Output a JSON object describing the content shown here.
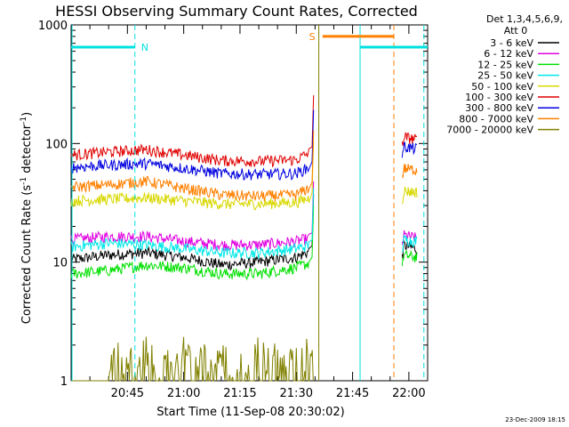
{
  "chart_data": {
    "type": "line",
    "title": "HESSI Observing Summary Count Rates, Corrected",
    "xlabel": "Start Time (11-Sep-08 20:30:02)",
    "ylabel": "Corrected Count Rate (s",
    "ylabel_sup1": "-1",
    "ylabel_mid": " detector",
    "ylabel_sup2": "-1",
    "ylabel_end": ")",
    "yscale": "log",
    "ylim": [
      1,
      1000
    ],
    "xlim_minutes": [
      0,
      95
    ],
    "y_ticks": [
      {
        "value": 1,
        "label": "1"
      },
      {
        "value": 10,
        "label": "10"
      },
      {
        "value": 100,
        "label": "100"
      },
      {
        "value": 1000,
        "label": "1000"
      }
    ],
    "x_ticks": [
      {
        "minute": 15,
        "label": "20:45"
      },
      {
        "minute": 30,
        "label": "21:00"
      },
      {
        "minute": 45,
        "label": "21:15"
      },
      {
        "minute": 60,
        "label": "21:30"
      },
      {
        "minute": 75,
        "label": "21:45"
      },
      {
        "minute": 90,
        "label": "22:00"
      }
    ],
    "legend_header": [
      "Det 1,3,4,5,6,9,",
      "Att 0"
    ],
    "legend_position": "right",
    "footer_date": "23-Dec-2009 18:15",
    "series": [
      {
        "name": "3 - 6 keV",
        "color": "#000000",
        "x": [
          0,
          10,
          20,
          30,
          40,
          50,
          60,
          64,
          65,
          88,
          92
        ],
        "y": [
          10.5,
          11.5,
          12,
          11,
          9.5,
          10,
          11,
          12.5,
          null,
          14,
          13
        ]
      },
      {
        "name": "6 - 12 keV",
        "color": "#e000e0",
        "x": [
          0,
          10,
          20,
          30,
          40,
          50,
          60,
          64,
          65,
          88,
          92
        ],
        "y": [
          15.5,
          16.5,
          16.5,
          15,
          14,
          14,
          15,
          16,
          null,
          17,
          16
        ]
      },
      {
        "name": "12 - 25 keV",
        "color": "#00e000",
        "x": [
          0,
          10,
          20,
          30,
          40,
          50,
          60,
          64,
          65,
          88,
          92
        ],
        "y": [
          8,
          8.5,
          9.5,
          9,
          8,
          8,
          9,
          10,
          null,
          11.5,
          11
        ]
      },
      {
        "name": "25 - 50 keV",
        "color": "#00e8e8",
        "x": [
          0,
          10,
          20,
          30,
          40,
          50,
          60,
          64,
          65,
          88,
          92
        ],
        "y": [
          13.5,
          14.5,
          14,
          13,
          12,
          12,
          13,
          14,
          null,
          15.5,
          15
        ]
      },
      {
        "name": "50 - 100 keV",
        "color": "#d8d800",
        "x": [
          0,
          10,
          20,
          30,
          40,
          50,
          60,
          64,
          65,
          88,
          92
        ],
        "y": [
          33,
          34,
          35,
          33,
          31,
          31,
          32,
          35,
          null,
          40,
          39
        ]
      },
      {
        "name": "100 - 300 keV",
        "color": "#e00000",
        "x": [
          0,
          10,
          20,
          30,
          40,
          50,
          60,
          64,
          65,
          88,
          92
        ],
        "y": [
          80,
          85,
          89,
          80,
          72,
          71,
          73,
          85,
          null,
          115,
          108
        ]
      },
      {
        "name": "300 - 800 keV",
        "color": "#0000e0",
        "x": [
          0,
          10,
          20,
          30,
          40,
          50,
          60,
          64,
          65,
          88,
          92
        ],
        "y": [
          63,
          66,
          68,
          62,
          56,
          55,
          56,
          64,
          null,
          95,
          90
        ]
      },
      {
        "name": "800 - 7000 keV",
        "color": "#ff8000",
        "x": [
          0,
          10,
          20,
          30,
          40,
          50,
          60,
          64,
          65,
          88,
          92
        ],
        "y": [
          43,
          45,
          48,
          42,
          37,
          36,
          37,
          43,
          null,
          62,
          60
        ]
      },
      {
        "name": "7000 - 20000 keV",
        "color": "#808000",
        "x": [
          0,
          9,
          12,
          16,
          20,
          25,
          30,
          35,
          40,
          45,
          50,
          55,
          60,
          64
        ],
        "y": [
          1,
          1,
          2,
          1,
          2,
          1,
          2,
          1,
          1.8,
          1,
          2,
          1,
          2,
          2
        ]
      }
    ],
    "annotations": [
      {
        "label": "N",
        "color": "#00e0e0"
      },
      {
        "label": "S",
        "color": "#ff8000"
      }
    ],
    "flag_bars": [
      {
        "color": "#00e0e0",
        "x": [
          0,
          17
        ],
        "y": 650
      },
      {
        "color": "#ff8000",
        "x": [
          67,
          86
        ],
        "y": 800
      },
      {
        "color": "#00e0e0",
        "x": [
          77,
          95
        ],
        "y": 650
      }
    ],
    "vlines": [
      {
        "minute": 17,
        "color": "#00e0e0",
        "dash": true
      },
      {
        "minute": 66,
        "color": "#808000",
        "dash": false
      },
      {
        "minute": 77,
        "color": "#00e0e0",
        "dash": false
      },
      {
        "minute": 86,
        "color": "#ff8000",
        "dash": true
      },
      {
        "minute": 94,
        "color": "#00e0e0",
        "dash": true
      }
    ],
    "flare_spike": {
      "minute": 65,
      "peak": 135
    },
    "gap_minutes": [
      66,
      88
    ]
  }
}
